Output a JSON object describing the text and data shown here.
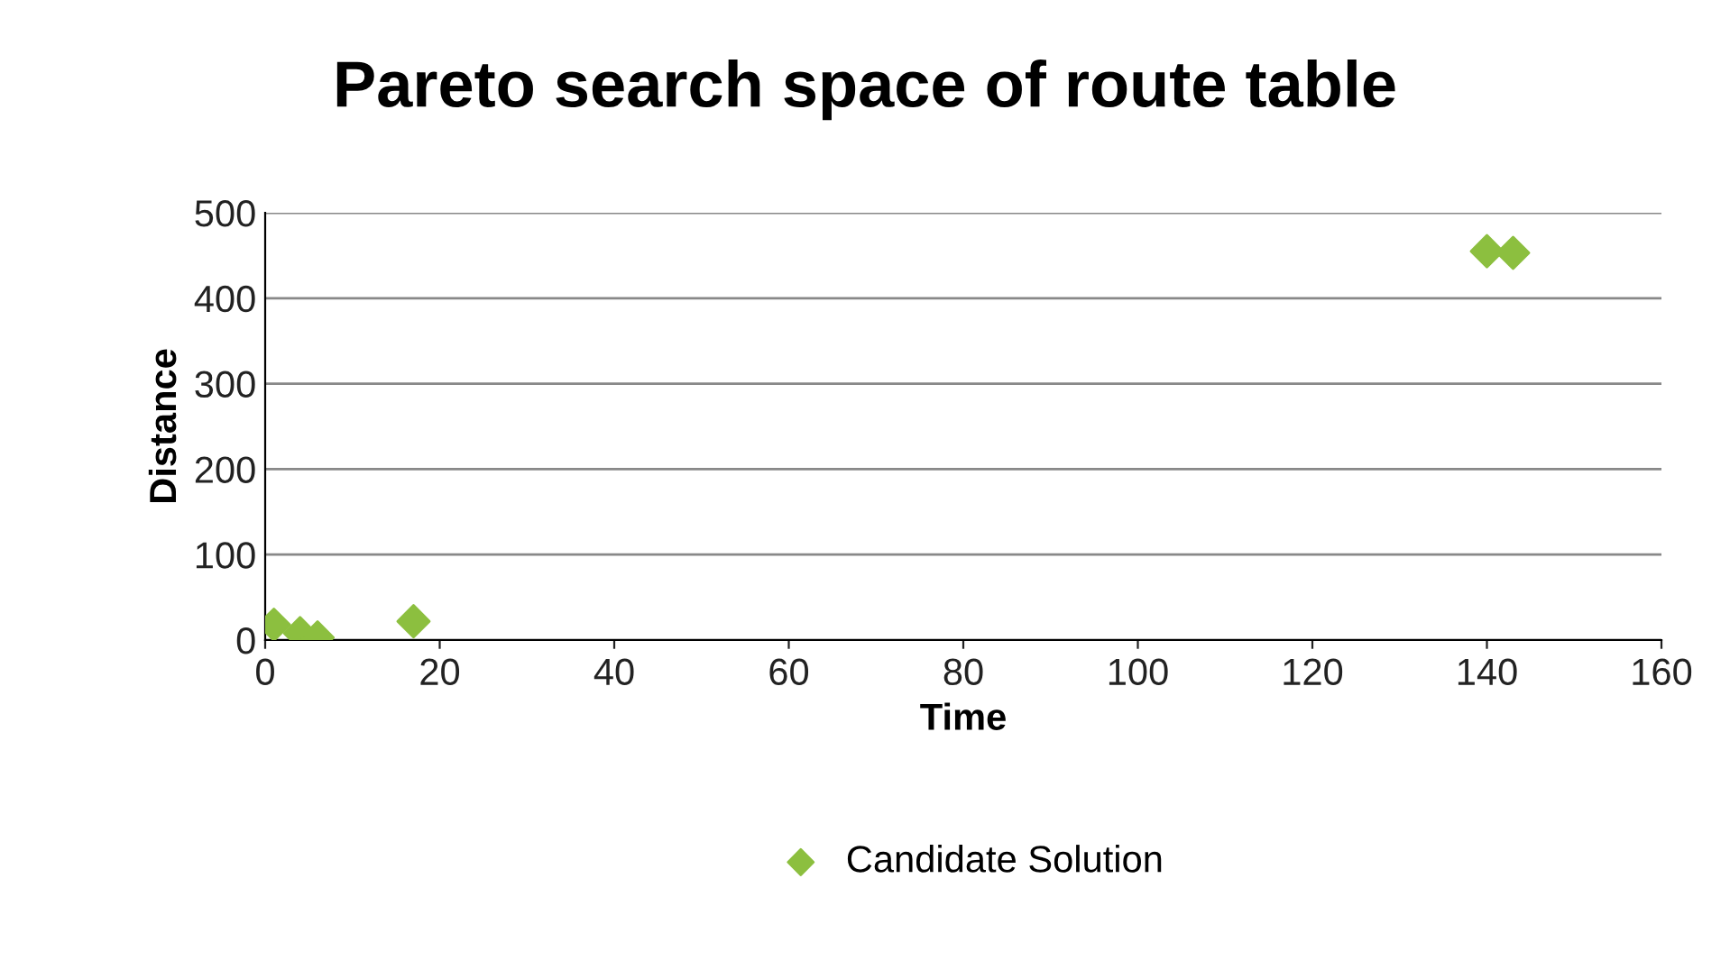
{
  "chart_data": {
    "type": "scatter",
    "title": "Pareto search space of route table",
    "xlabel": "Time",
    "ylabel": "Distance",
    "series": [
      {
        "name": "Candidate Solution",
        "color": "#8cbf3f",
        "x": [
          1,
          4,
          6,
          17,
          140,
          143
        ],
        "values": [
          18,
          8,
          3,
          22,
          455,
          453
        ]
      }
    ],
    "xlim": [
      0,
      160
    ],
    "xticks": [
      0,
      20,
      40,
      60,
      80,
      100,
      120,
      140,
      160
    ],
    "ylim": [
      0,
      500
    ],
    "yticks": [
      0,
      100,
      200,
      300,
      400,
      500
    ],
    "grid": "y",
    "legend": "bottom",
    "marker": "diamond"
  }
}
